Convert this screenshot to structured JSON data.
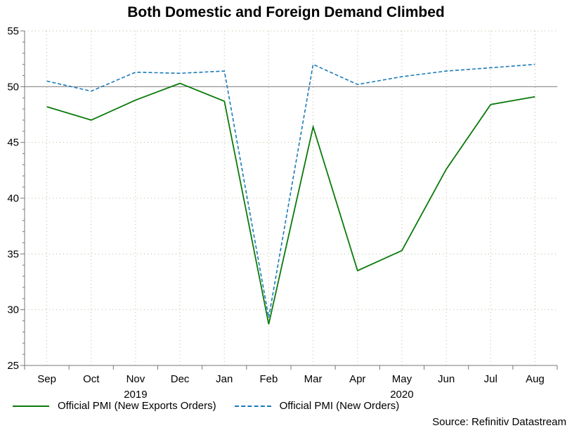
{
  "chart_data": {
    "type": "line",
    "title": "Both Domestic and Foreign Demand Climbed",
    "categories": [
      "Sep",
      "Oct",
      "Nov",
      "Dec",
      "Jan",
      "Feb",
      "Mar",
      "Apr",
      "May",
      "Jun",
      "Jul",
      "Aug"
    ],
    "year_labels": [
      {
        "label": "2019",
        "at_category": "Nov"
      },
      {
        "label": "2020",
        "at_category": "May"
      }
    ],
    "ylim": [
      25,
      55
    ],
    "yticks": [
      25,
      30,
      35,
      40,
      45,
      50,
      55
    ],
    "reference_line": 50,
    "grid": true,
    "legend_position": "bottom",
    "series": [
      {
        "name": "Official PMI (New Exports Orders)",
        "color": "#0a7a0a",
        "dash": "solid",
        "values": [
          48.2,
          47.0,
          48.8,
          50.3,
          48.7,
          28.7,
          46.4,
          33.5,
          35.3,
          42.6,
          48.4,
          49.1
        ]
      },
      {
        "name": "Official PMI (New Orders)",
        "color": "#1a7ab8",
        "dash": "dashed",
        "values": [
          50.5,
          49.6,
          51.3,
          51.2,
          51.4,
          29.3,
          52.0,
          50.2,
          50.9,
          51.4,
          51.7,
          52.0
        ]
      }
    ],
    "source": "Source: Refinitiv Datastream"
  }
}
